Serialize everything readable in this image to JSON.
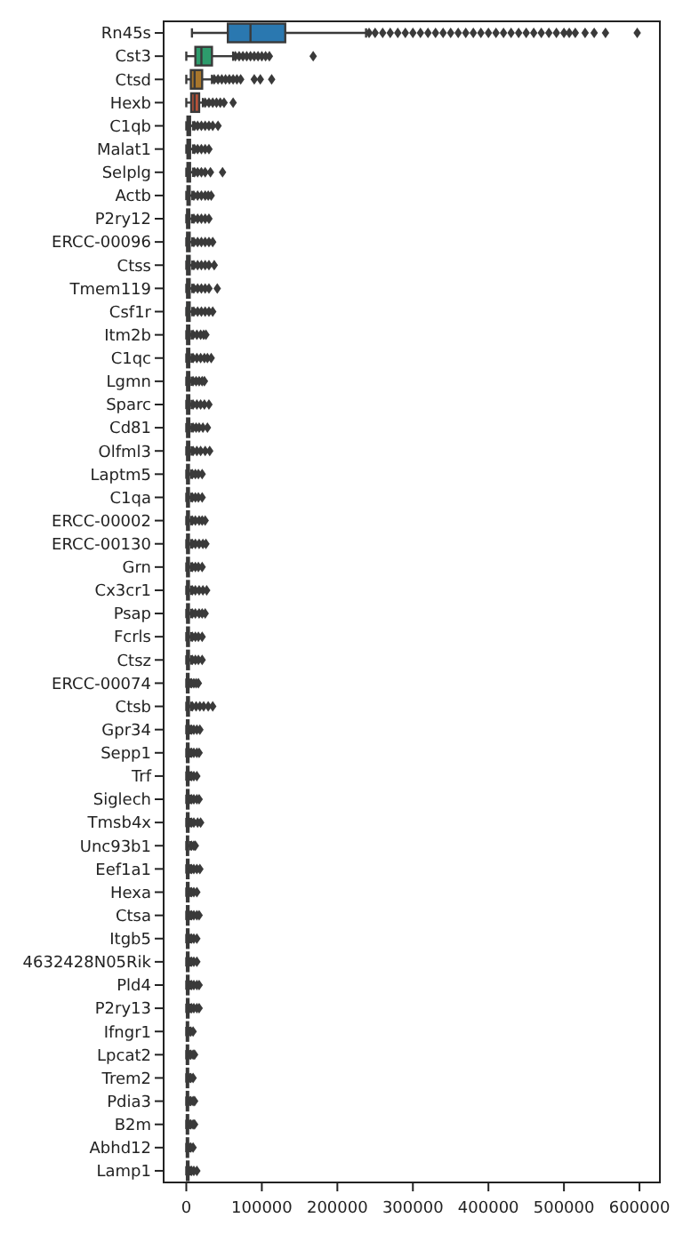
{
  "chart_data": {
    "type": "box",
    "orientation": "horizontal",
    "marker": "diamond",
    "categories": [
      "Rn45s",
      "Cst3",
      "Ctsd",
      "Hexb",
      "C1qb",
      "Malat1",
      "Selplg",
      "Actb",
      "P2ry12",
      "ERCC-00096",
      "Ctss",
      "Tmem119",
      "Csf1r",
      "Itm2b",
      "C1qc",
      "Lgmn",
      "Sparc",
      "Cd81",
      "Olfml3",
      "Laptm5",
      "C1qa",
      "ERCC-00002",
      "ERCC-00130",
      "Grn",
      "Cx3cr1",
      "Psap",
      "Fcrls",
      "Ctsz",
      "ERCC-00074",
      "Ctsb",
      "Gpr34",
      "Sepp1",
      "Trf",
      "Siglech",
      "Tmsb4x",
      "Unc93b1",
      "Eef1a1",
      "Hexa",
      "Ctsa",
      "Itgb5",
      "4632428N05Rik",
      "Pld4",
      "P2ry13",
      "Ifngr1",
      "Lpcat2",
      "Trem2",
      "Pdia3",
      "B2m",
      "Abhd12",
      "Lamp1"
    ],
    "colors": [
      "#2a78b0",
      "#2d9c6c",
      "#a8762c",
      "#b8533a",
      "#b07aa8",
      "#8e7358",
      "#c69bc0",
      "#7d7d7d",
      "#b3ac45",
      "#5ba6cc",
      "#2a78b0",
      "#d08a2c",
      "#2d9c6c",
      "#b8533a",
      "#b07aa8",
      "#8e7358",
      "#c69bc0",
      "#7d7d7d",
      "#b3ac45",
      "#5ba6cc",
      "#2a78b0",
      "#d08a2c",
      "#2d9c6c",
      "#b8533a",
      "#b07aa8",
      "#8e7358",
      "#c69bc0",
      "#7d7d7d",
      "#b3ac45",
      "#5ba6cc",
      "#2a78b0",
      "#d08a2c",
      "#2d9c6c",
      "#b8533a",
      "#b07aa8",
      "#8e7358",
      "#c69bc0",
      "#7d7d7d",
      "#b3ac45",
      "#5ba6cc",
      "#2a78b0",
      "#d08a2c",
      "#2d9c6c",
      "#b8533a",
      "#b07aa8",
      "#8e7358",
      "#c69bc0",
      "#7d7d7d",
      "#b3ac45",
      "#5ba6cc"
    ],
    "boxes": [
      {
        "low": 7500,
        "q1": 55000,
        "median": 85000,
        "q3": 131000,
        "high": 238000,
        "outliers": [
          242000,
          250000,
          260000,
          270000,
          280000,
          290000,
          300000,
          310000,
          320000,
          330000,
          340000,
          350000,
          360000,
          370000,
          380000,
          390000,
          400000,
          410000,
          420000,
          430000,
          440000,
          450000,
          460000,
          470000,
          480000,
          490000,
          500000,
          507000,
          515000,
          528000,
          540000,
          555000,
          597000
        ]
      },
      {
        "low": 0,
        "q1": 12000,
        "median": 20000,
        "q3": 34000,
        "high": 62000,
        "outliers": [
          65000,
          70000,
          75000,
          80000,
          85000,
          90000,
          95000,
          100000,
          105000,
          110000,
          168000
        ]
      },
      {
        "low": 0,
        "q1": 6000,
        "median": 11000,
        "q3": 21000,
        "high": 34000,
        "outliers": [
          37000,
          42000,
          47000,
          52000,
          57000,
          62000,
          67000,
          72000,
          90000,
          98000,
          113000
        ]
      },
      {
        "low": 0,
        "q1": 6500,
        "median": 11000,
        "q3": 17000,
        "high": 22000,
        "outliers": [
          25000,
          30000,
          35000,
          40000,
          45000,
          50000,
          62000
        ]
      },
      {
        "low": 0,
        "q1": 1500,
        "median": 3000,
        "q3": 5000,
        "high": 9000,
        "outliers": [
          11000,
          15000,
          20000,
          25000,
          30000,
          35000,
          42000
        ]
      },
      {
        "low": 0,
        "q1": 1500,
        "median": 3000,
        "q3": 5000,
        "high": 9000,
        "outliers": [
          11000,
          15000,
          20000,
          25000,
          30000
        ]
      },
      {
        "low": 0,
        "q1": 1500,
        "median": 3000,
        "q3": 5000,
        "high": 9000,
        "outliers": [
          11000,
          15000,
          20000,
          25000,
          32000,
          48000
        ]
      },
      {
        "low": 0,
        "q1": 1500,
        "median": 3000,
        "q3": 4500,
        "high": 8000,
        "outliers": [
          10000,
          15000,
          20000,
          25000,
          29000,
          33000
        ]
      },
      {
        "low": 0,
        "q1": 1000,
        "median": 2500,
        "q3": 4000,
        "high": 7500,
        "outliers": [
          10000,
          15000,
          20000,
          25000,
          30000
        ]
      },
      {
        "low": 0,
        "q1": 1000,
        "median": 2500,
        "q3": 4500,
        "high": 8000,
        "outliers": [
          10000,
          15000,
          20000,
          25000,
          30000,
          35000
        ]
      },
      {
        "low": 0,
        "q1": 1000,
        "median": 2500,
        "q3": 4500,
        "high": 8000,
        "outliers": [
          10000,
          15000,
          20000,
          25000,
          30000,
          37000
        ]
      },
      {
        "low": 0,
        "q1": 1000,
        "median": 2500,
        "q3": 4500,
        "high": 8000,
        "outliers": [
          10000,
          15000,
          20000,
          25000,
          30000,
          41000
        ]
      },
      {
        "low": 0,
        "q1": 1000,
        "median": 2500,
        "q3": 4500,
        "high": 8000,
        "outliers": [
          10000,
          15000,
          20000,
          25000,
          30000,
          35000
        ]
      },
      {
        "low": 0,
        "q1": 1000,
        "median": 2000,
        "q3": 4000,
        "high": 7000,
        "outliers": [
          9000,
          14000,
          19000,
          23000,
          26000
        ]
      },
      {
        "low": 0,
        "q1": 1000,
        "median": 2000,
        "q3": 4000,
        "high": 7000,
        "outliers": [
          9000,
          14000,
          19000,
          24000,
          28000,
          33000
        ]
      },
      {
        "low": 0,
        "q1": 1000,
        "median": 2000,
        "q3": 4000,
        "high": 7000,
        "outliers": [
          9000,
          13000,
          17000,
          21000,
          24000
        ]
      },
      {
        "low": 0,
        "q1": 1000,
        "median": 2000,
        "q3": 4000,
        "high": 7000,
        "outliers": [
          9000,
          14000,
          19000,
          24000,
          30000
        ]
      },
      {
        "low": 0,
        "q1": 1000,
        "median": 2000,
        "q3": 4000,
        "high": 7000,
        "outliers": [
          9000,
          13000,
          17000,
          22000,
          28000
        ]
      },
      {
        "low": 0,
        "q1": 1000,
        "median": 2000,
        "q3": 4000,
        "high": 7000,
        "outliers": [
          9000,
          14000,
          19000,
          25000,
          31000
        ]
      },
      {
        "low": 0,
        "q1": 1000,
        "median": 2000,
        "q3": 3500,
        "high": 6500,
        "outliers": [
          8000,
          12000,
          16000,
          21000
        ]
      },
      {
        "low": 0,
        "q1": 1000,
        "median": 2000,
        "q3": 3500,
        "high": 6500,
        "outliers": [
          8000,
          12000,
          16000,
          21000
        ]
      },
      {
        "low": 0,
        "q1": 1000,
        "median": 2000,
        "q3": 3500,
        "high": 6500,
        "outliers": [
          8000,
          12000,
          17000,
          21000,
          25000
        ]
      },
      {
        "low": 0,
        "q1": 1000,
        "median": 2000,
        "q3": 3500,
        "high": 6500,
        "outliers": [
          8000,
          12000,
          17000,
          22000,
          26000
        ]
      },
      {
        "low": 0,
        "q1": 1000,
        "median": 2000,
        "q3": 3500,
        "high": 6500,
        "outliers": [
          8000,
          12000,
          16000,
          21000
        ]
      },
      {
        "low": 0,
        "q1": 1000,
        "median": 2000,
        "q3": 3500,
        "high": 6500,
        "outliers": [
          8000,
          12000,
          17000,
          22000,
          27000
        ]
      },
      {
        "low": 0,
        "q1": 1000,
        "median": 2000,
        "q3": 3500,
        "high": 6500,
        "outliers": [
          8000,
          12000,
          17000,
          21000,
          25000
        ]
      },
      {
        "low": 0,
        "q1": 1000,
        "median": 2000,
        "q3": 3500,
        "high": 6500,
        "outliers": [
          8000,
          12000,
          16000,
          21000
        ]
      },
      {
        "low": 0,
        "q1": 1000,
        "median": 2000,
        "q3": 3500,
        "high": 6500,
        "outliers": [
          8000,
          12000,
          16000,
          21000
        ]
      },
      {
        "low": 0,
        "q1": 800,
        "median": 1500,
        "q3": 3000,
        "high": 5500,
        "outliers": [
          7000,
          10000,
          13000,
          16000
        ]
      },
      {
        "low": 0,
        "q1": 1000,
        "median": 2000,
        "q3": 3500,
        "high": 6500,
        "outliers": [
          8000,
          13000,
          18000,
          23000,
          29000,
          35000
        ]
      },
      {
        "low": 0,
        "q1": 800,
        "median": 1500,
        "q3": 3000,
        "high": 5500,
        "outliers": [
          7000,
          10000,
          14000,
          18000
        ]
      },
      {
        "low": 0,
        "q1": 800,
        "median": 1500,
        "q3": 3000,
        "high": 5500,
        "outliers": [
          7000,
          10000,
          14000,
          17000
        ]
      },
      {
        "low": 0,
        "q1": 800,
        "median": 1500,
        "q3": 3000,
        "high": 5500,
        "outliers": [
          7000,
          10000,
          14000
        ]
      },
      {
        "low": 0,
        "q1": 800,
        "median": 1500,
        "q3": 3000,
        "high": 5500,
        "outliers": [
          7000,
          10000,
          14000,
          17000
        ]
      },
      {
        "low": 0,
        "q1": 800,
        "median": 1500,
        "q3": 3000,
        "high": 5500,
        "outliers": [
          7000,
          10000,
          15000,
          19000
        ]
      },
      {
        "low": 0,
        "q1": 800,
        "median": 1500,
        "q3": 2500,
        "high": 5000,
        "outliers": [
          7000,
          10000,
          12000
        ]
      },
      {
        "low": 0,
        "q1": 800,
        "median": 1500,
        "q3": 3000,
        "high": 5500,
        "outliers": [
          7000,
          10000,
          14000,
          18000
        ]
      },
      {
        "low": 0,
        "q1": 800,
        "median": 1500,
        "q3": 3000,
        "high": 5500,
        "outliers": [
          7000,
          10000,
          14000
        ]
      },
      {
        "low": 0,
        "q1": 800,
        "median": 1500,
        "q3": 3000,
        "high": 5500,
        "outliers": [
          7000,
          10000,
          14000,
          17000
        ]
      },
      {
        "low": 0,
        "q1": 800,
        "median": 1500,
        "q3": 3000,
        "high": 5500,
        "outliers": [
          7000,
          10000,
          14000
        ]
      },
      {
        "low": 0,
        "q1": 800,
        "median": 1500,
        "q3": 3000,
        "high": 5500,
        "outliers": [
          7000,
          10000,
          14000
        ]
      },
      {
        "low": 0,
        "q1": 800,
        "median": 1500,
        "q3": 3000,
        "high": 5500,
        "outliers": [
          7000,
          10000,
          14000,
          17000
        ]
      },
      {
        "low": 0,
        "q1": 800,
        "median": 1500,
        "q3": 3000,
        "high": 5500,
        "outliers": [
          7000,
          10000,
          14000,
          17000
        ]
      },
      {
        "low": 0,
        "q1": 600,
        "median": 1200,
        "q3": 2500,
        "high": 4500,
        "outliers": [
          6000,
          9000
        ]
      },
      {
        "low": 0,
        "q1": 600,
        "median": 1200,
        "q3": 2500,
        "high": 4500,
        "outliers": [
          6000,
          9000,
          11000
        ]
      },
      {
        "low": 0,
        "q1": 600,
        "median": 1200,
        "q3": 2500,
        "high": 4500,
        "outliers": [
          6000,
          9000
        ]
      },
      {
        "low": 0,
        "q1": 600,
        "median": 1200,
        "q3": 2500,
        "high": 4500,
        "outliers": [
          6000,
          9000,
          11000
        ]
      },
      {
        "low": 0,
        "q1": 600,
        "median": 1200,
        "q3": 2500,
        "high": 4500,
        "outliers": [
          6000,
          9000,
          11000
        ]
      },
      {
        "low": 0,
        "q1": 600,
        "median": 1200,
        "q3": 2500,
        "high": 4500,
        "outliers": [
          6000,
          9000
        ]
      },
      {
        "low": 0,
        "q1": 800,
        "median": 1500,
        "q3": 3000,
        "high": 5500,
        "outliers": [
          7000,
          10000,
          14000
        ]
      }
    ],
    "xlim": [
      -30000,
      627000
    ],
    "xticks": [
      0,
      100000,
      200000,
      300000,
      400000,
      500000,
      600000
    ]
  }
}
